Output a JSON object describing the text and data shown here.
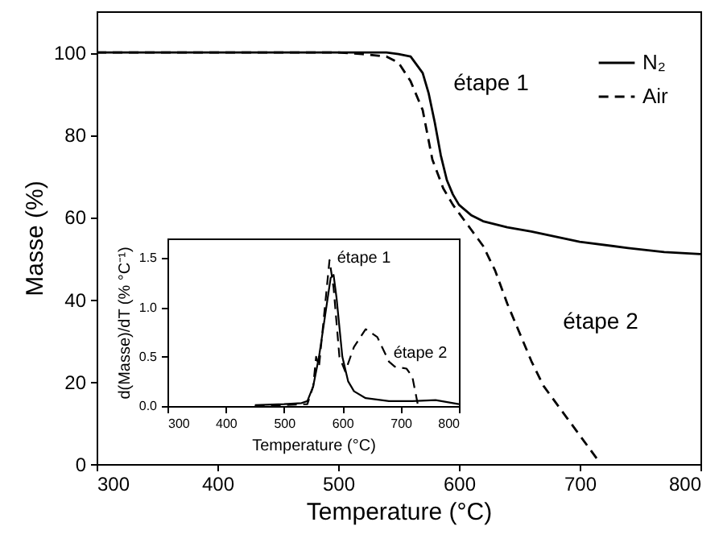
{
  "chart_data": [
    {
      "type": "line",
      "xlabel": "Temperature (°C)",
      "ylabel": "Masse (%)",
      "xlim": [
        300,
        800
      ],
      "ylim": [
        0,
        110
      ],
      "xticks": [
        300,
        400,
        500,
        600,
        700,
        800
      ],
      "yticks": [
        0,
        20,
        40,
        60,
        80,
        100
      ],
      "grid": false,
      "legend": "top right",
      "annotations": [
        "étape 1",
        "étape 2"
      ],
      "series": [
        {
          "name": "N₂",
          "color": "#000000",
          "line_style": "solid",
          "x": [
            300,
            400,
            500,
            540,
            550,
            560,
            570,
            575,
            580,
            585,
            590,
            595,
            600,
            610,
            620,
            640,
            660,
            700,
            740,
            770,
            800
          ],
          "values": [
            100,
            100,
            100,
            100,
            99.6,
            99,
            95,
            90,
            83,
            75,
            69,
            65.5,
            63,
            60.5,
            59,
            57.5,
            56.5,
            54,
            52.5,
            51.5,
            51
          ]
        },
        {
          "name": "Air",
          "color": "#000000",
          "line_style": "dashed",
          "x": [
            300,
            400,
            500,
            520,
            540,
            550,
            560,
            570,
            578,
            587,
            595,
            600,
            610,
            620,
            630,
            640,
            650,
            660,
            670,
            680,
            690,
            700,
            710,
            715
          ],
          "values": [
            100,
            100,
            100,
            99.6,
            99,
            97.5,
            93,
            86,
            74,
            67,
            63,
            61,
            57,
            53,
            47,
            39,
            32,
            25,
            19,
            15,
            11,
            7,
            3,
            1
          ]
        }
      ]
    },
    {
      "type": "line",
      "xlabel": "Temperature (°C)",
      "ylabel": "d(Masse)/dT (% °C⁻¹)",
      "xlim": [
        300,
        800
      ],
      "ylim": [
        0,
        1.7
      ],
      "xticks": [
        300,
        400,
        500,
        600,
        700,
        800
      ],
      "yticks": [
        {
          "value": 0,
          "label": "0.0"
        },
        {
          "value": 0.5,
          "label": "0.5"
        },
        {
          "value": 1,
          "label": "1.0"
        },
        {
          "value": 1.5,
          "label": "1.5"
        }
      ],
      "grid": false,
      "annotations": [
        "étape 1",
        "étape 2"
      ],
      "series": [
        {
          "color": "#000000",
          "line_style": "solid",
          "x": [
            450,
            500,
            530,
            540,
            550,
            560,
            570,
            580,
            585,
            590,
            600,
            610,
            620,
            640,
            680,
            720,
            760,
            800
          ],
          "values": [
            0.01,
            0.02,
            0.03,
            0.05,
            0.2,
            0.5,
            0.9,
            1.3,
            1.33,
            1.1,
            0.5,
            0.25,
            0.15,
            0.08,
            0.05,
            0.05,
            0.06,
            0.02
          ]
        },
        {
          "color": "#000000",
          "line_style": "dashed",
          "x": [
            450,
            500,
            540,
            550,
            555,
            560,
            570,
            578,
            585,
            595,
            605,
            620,
            640,
            660,
            680,
            690,
            710,
            720,
            730
          ],
          "values": [
            0,
            0.01,
            0.02,
            0.2,
            0.5,
            0.4,
            1.0,
            1.48,
            1.2,
            0.5,
            0.35,
            0.6,
            0.78,
            0.7,
            0.45,
            0.4,
            0.38,
            0.3,
            0
          ]
        }
      ]
    }
  ]
}
